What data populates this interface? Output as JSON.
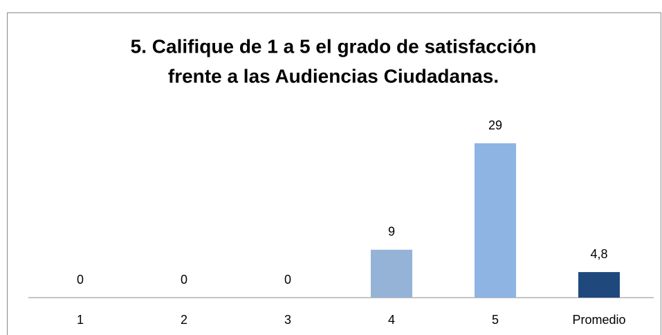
{
  "chart_data": {
    "type": "bar",
    "title": [
      "5. Califique de 1 a 5 el grado de satisfacción",
      "frente a las Audiencias Ciudadanas."
    ],
    "categories": [
      "1",
      "2",
      "3",
      "4",
      "5",
      "Promedio"
    ],
    "values": [
      0,
      0,
      0,
      9,
      29,
      4.8
    ],
    "value_labels": [
      "0",
      "0",
      "0",
      "9",
      "29",
      "4,8"
    ],
    "colors": [
      "#95b3d7",
      "#95b3d7",
      "#95b3d7",
      "#95b3d7",
      "#8db4e2",
      "#1f497d"
    ]
  }
}
